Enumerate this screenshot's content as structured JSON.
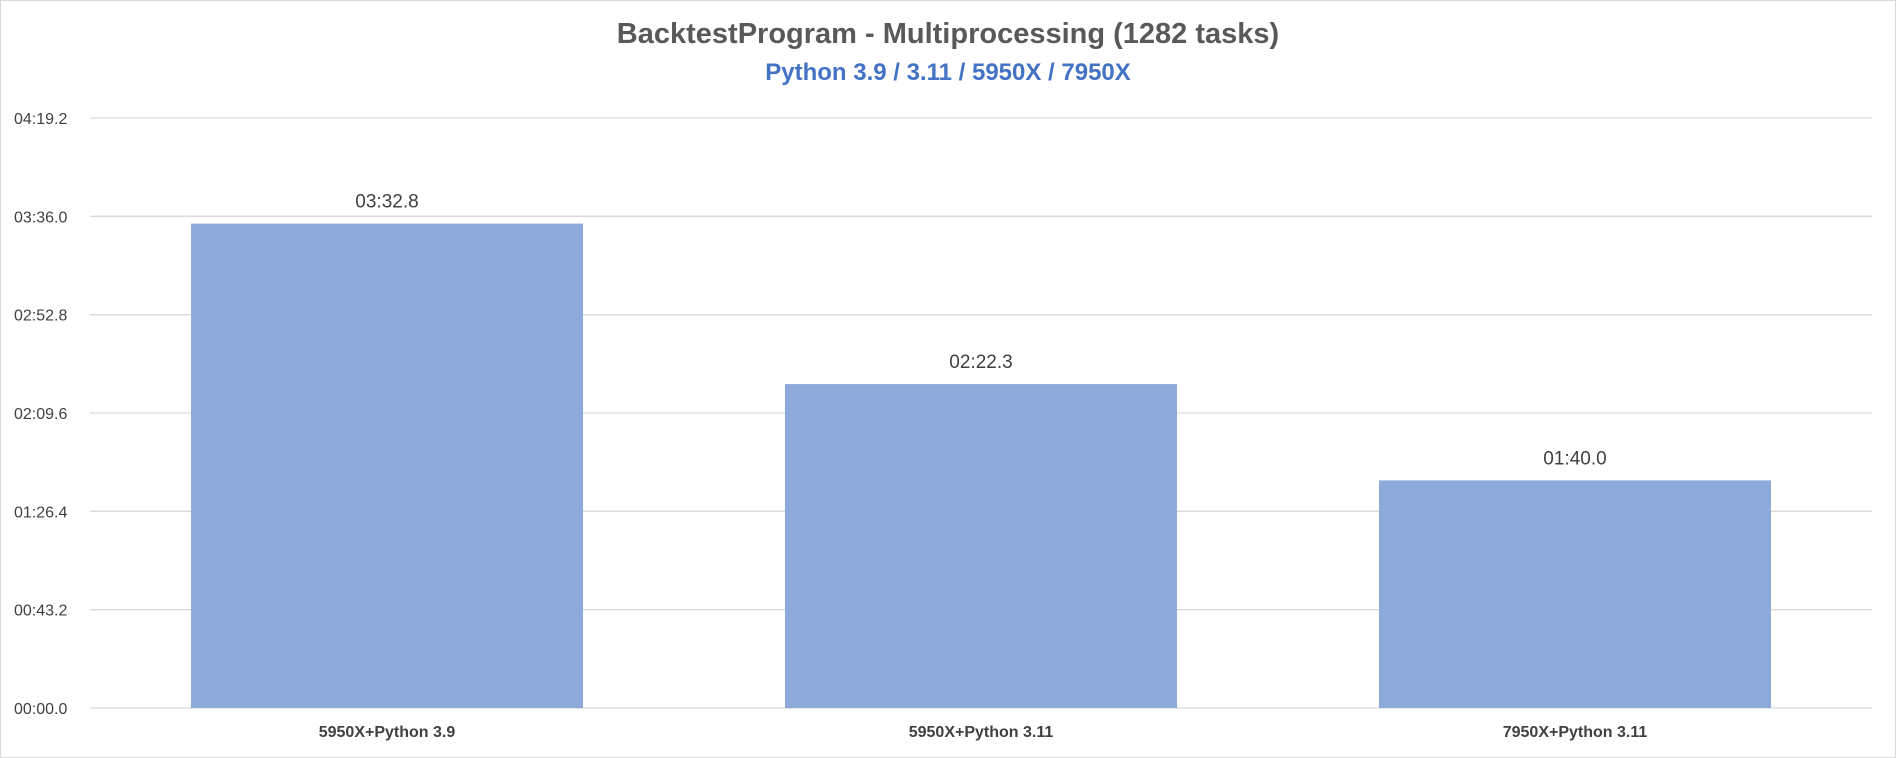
{
  "chart_data": {
    "type": "bar",
    "title": "BacktestProgram - Multiprocessing (1282 tasks)",
    "subtitle": "Python 3.9 / 3.11 / 5950X / 7950X",
    "categories": [
      "5950X+Python 3.9",
      "5950X+Python 3.11",
      "7950X+Python 3.11"
    ],
    "values": [
      212.8,
      142.3,
      100.0
    ],
    "data_labels": [
      "03:32.8",
      "02:22.3",
      "01:40.0"
    ],
    "y_unit": "seconds (mm:ss.s)",
    "ylim": [
      0,
      259.2
    ],
    "y_ticks": [
      0,
      43.2,
      86.4,
      129.6,
      172.8,
      216.0,
      259.2
    ],
    "y_tick_labels": [
      "00:00.0",
      "00:43.2",
      "01:26.4",
      "02:09.6",
      "02:52.8",
      "03:36.0",
      "04:19.2"
    ],
    "grid": true,
    "legend": "none",
    "colors": {
      "bar": "#8eaadb",
      "grid": "#d9d9d9",
      "title": "#595959",
      "subtitle": "#4472c4",
      "text": "#404040"
    }
  }
}
